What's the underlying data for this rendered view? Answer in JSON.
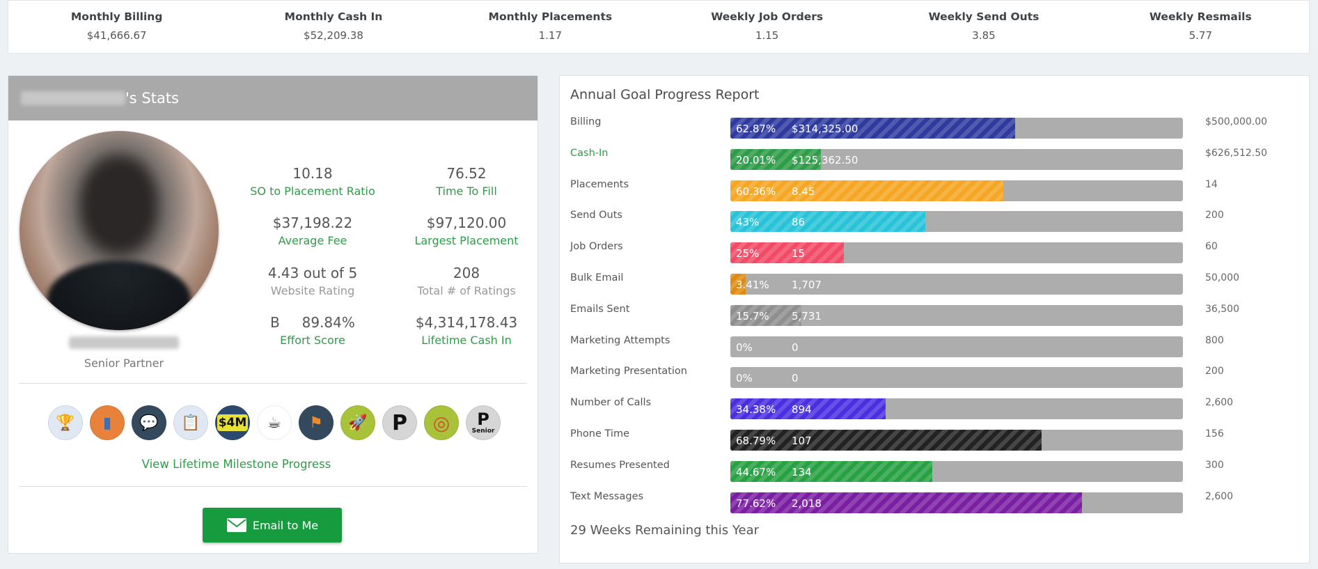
{
  "metrics": [
    {
      "label": "Monthly Billing",
      "value": "$41,666.67"
    },
    {
      "label": "Monthly Cash In",
      "value": "$52,209.38"
    },
    {
      "label": "Monthly Placements",
      "value": "1.17"
    },
    {
      "label": "Weekly Job Orders",
      "value": "1.15"
    },
    {
      "label": "Weekly Send Outs",
      "value": "3.85"
    },
    {
      "label": "Weekly Resmails",
      "value": "5.77"
    }
  ],
  "stats_card": {
    "title_suffix": "'s Stats",
    "person_title": "Senior Partner",
    "stats": [
      {
        "value": "10.18",
        "label": "SO to Placement Ratio"
      },
      {
        "value": "76.52",
        "label": "Time To Fill"
      },
      {
        "value": "$37,198.22",
        "label": "Average Fee"
      },
      {
        "value": "$97,120.00",
        "label": "Largest Placement"
      },
      {
        "value": "4.43 out of 5",
        "label": "Website Rating"
      },
      {
        "value": "208",
        "label": "Total # of Ratings"
      },
      {
        "value": "B     89.84%",
        "label": "Effort Score"
      },
      {
        "value": "$4,314,178.43",
        "label": "Lifetime Cash In"
      }
    ],
    "badges": [
      {
        "icon": "trophy-badge-icon",
        "color": "#dfe8f3"
      },
      {
        "icon": "passport-badge-icon",
        "color": "#e8823a"
      },
      {
        "icon": "chat-bubbles-badge-icon",
        "color": "#34495e"
      },
      {
        "icon": "clipboard-badge-icon",
        "color": "#dfe8f3"
      },
      {
        "icon": "4m-badge-icon",
        "color": "#2c4a6e",
        "text": "$4M"
      },
      {
        "icon": "coffee-machine-badge-icon",
        "color": "#ffffff"
      },
      {
        "icon": "flag-badge-icon",
        "color": "#34495e"
      },
      {
        "icon": "rocket-badge-icon",
        "color": "#a8c23a"
      },
      {
        "icon": "p-badge-icon",
        "color": "#d6d6d6",
        "text": "P"
      },
      {
        "icon": "target-badge-icon",
        "color": "#a8c23a"
      },
      {
        "icon": "p-senior-badge-icon",
        "color": "#d6d6d6",
        "text": "P",
        "subtext": "Senior"
      }
    ],
    "milestone_link": "View Lifetime Milestone Progress",
    "email_button": "Email to Me"
  },
  "goals": {
    "title": "Annual Goal Progress Report",
    "rows": [
      {
        "label": "Billing",
        "percent": "62.87%",
        "fraction": 0.6287,
        "value": "$314,325.00",
        "target": "$500,000.00",
        "color": "#2e3a9e",
        "striped": true
      },
      {
        "label": "Cash-In",
        "percent": "20.01%",
        "fraction": 0.2001,
        "value": "$125,362.50",
        "target": "$626,512.50",
        "color": "#2e9c48",
        "striped": true,
        "green_label": true
      },
      {
        "label": "Placements",
        "percent": "60.36%",
        "fraction": 0.6036,
        "value": "8.45",
        "target": "14",
        "color": "#f5a623",
        "striped": true
      },
      {
        "label": "Send Outs",
        "percent": "43%",
        "fraction": 0.43,
        "value": "86",
        "target": "200",
        "color": "#28c3d8",
        "striped": true
      },
      {
        "label": "Job Orders",
        "percent": "25%",
        "fraction": 0.25,
        "value": "15",
        "target": "60",
        "color": "#f24b67",
        "striped": true
      },
      {
        "label": "Bulk Email",
        "percent": "3.41%",
        "fraction": 0.0341,
        "value": "1,707",
        "target": "50,000",
        "color": "#e08a12",
        "striped": true
      },
      {
        "label": "Emails Sent",
        "percent": "15.7%",
        "fraction": 0.157,
        "value": "5,731",
        "target": "36,500",
        "color": "#8f8f8f",
        "striped": true
      },
      {
        "label": "Marketing Attempts",
        "percent": "0%",
        "fraction": 0,
        "value": "0",
        "target": "800",
        "color": "#adadad",
        "striped": false
      },
      {
        "label": "Marketing Presentation",
        "percent": "0%",
        "fraction": 0,
        "value": "0",
        "target": "200",
        "color": "#adadad",
        "striped": false
      },
      {
        "label": "Number of Calls",
        "percent": "34.38%",
        "fraction": 0.3438,
        "value": "894",
        "target": "2,600",
        "color": "#4a2fe0",
        "striped": true
      },
      {
        "label": "Phone Time",
        "percent": "68.79%",
        "fraction": 0.6879,
        "value": "107",
        "target": "156",
        "color": "#222222",
        "striped": true
      },
      {
        "label": "Resumes Presented",
        "percent": "44.67%",
        "fraction": 0.4467,
        "value": "134",
        "target": "300",
        "color": "#28a143",
        "striped": true
      },
      {
        "label": "Text Messages",
        "percent": "77.62%",
        "fraction": 0.7762,
        "value": "2,018",
        "target": "2,600",
        "color": "#7b1fa2",
        "striped": true
      }
    ],
    "weeks_remaining": "29 Weeks Remaining this Year"
  }
}
